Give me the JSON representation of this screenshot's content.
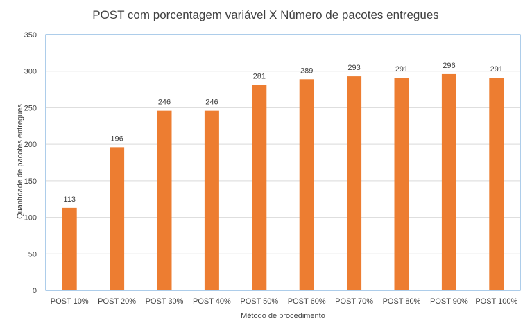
{
  "chart_data": {
    "type": "bar",
    "title": "POST com porcentagem variável X Número de pacotes entregues",
    "xlabel": "Método  de procedimento",
    "ylabel": "Quantidade de pacotes entregues",
    "categories": [
      "POST 10%",
      "POST 20%",
      "POST 30%",
      "POST 40%",
      "POST 50%",
      "POST 60%",
      "POST 70%",
      "POST 80%",
      "POST 90%",
      "POST 100%"
    ],
    "values": [
      113,
      196,
      246,
      246,
      281,
      289,
      293,
      291,
      296,
      291
    ],
    "ylim": [
      0,
      350
    ],
    "yticks": [
      0,
      50,
      100,
      150,
      200,
      250,
      300,
      350
    ],
    "grid": true,
    "legend": "none",
    "colors": {
      "bar": "#ed7d31",
      "grid": "#d9d9d9",
      "plot_border": "#5b9bd5",
      "text": "#404040"
    }
  }
}
